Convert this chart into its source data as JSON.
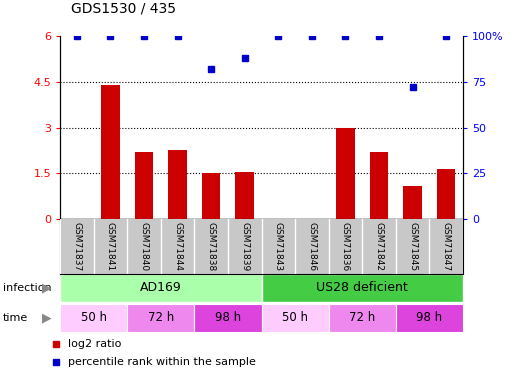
{
  "title": "GDS1530 / 435",
  "samples": [
    "GSM71837",
    "GSM71841",
    "GSM71840",
    "GSM71844",
    "GSM71838",
    "GSM71839",
    "GSM71843",
    "GSM71846",
    "GSM71836",
    "GSM71842",
    "GSM71845",
    "GSM71847"
  ],
  "log2_ratio": [
    0.0,
    4.4,
    2.2,
    2.25,
    1.5,
    1.55,
    0.0,
    0.0,
    3.0,
    2.2,
    1.1,
    1.65
  ],
  "percentile_x_idx": [
    0,
    1,
    2,
    3,
    4,
    5,
    6,
    7,
    8,
    9,
    10,
    11
  ],
  "percentile_values": [
    100,
    100,
    100,
    100,
    82,
    88,
    100,
    100,
    100,
    100,
    72,
    100
  ],
  "ylim_left": [
    0,
    6
  ],
  "ylim_right": [
    0,
    100
  ],
  "yticks_left": [
    0,
    1.5,
    3.0,
    4.5,
    6.0
  ],
  "ytick_labels_left": [
    "0",
    "1.5",
    "3",
    "4.5",
    "6"
  ],
  "yticks_right": [
    0,
    25,
    50,
    75,
    100
  ],
  "ytick_labels_right": [
    "0",
    "25",
    "50",
    "75",
    "100%"
  ],
  "bar_color": "#cc0000",
  "dot_color": "#0000cc",
  "infection_labels": [
    "AD169",
    "US28 deficient"
  ],
  "infection_color_light": "#aaffaa",
  "infection_color_dark": "#44cc44",
  "time_groups": [
    {
      "label": "50 h",
      "span": [
        0,
        2
      ],
      "color": "#ffccff"
    },
    {
      "label": "72 h",
      "span": [
        2,
        4
      ],
      "color": "#ee88ee"
    },
    {
      "label": "98 h",
      "span": [
        4,
        6
      ],
      "color": "#dd44dd"
    },
    {
      "label": "50 h",
      "span": [
        6,
        8
      ],
      "color": "#ffccff"
    },
    {
      "label": "72 h",
      "span": [
        8,
        10
      ],
      "color": "#ee88ee"
    },
    {
      "label": "98 h",
      "span": [
        10,
        12
      ],
      "color": "#dd44dd"
    }
  ],
  "legend_bar_color": "#cc0000",
  "legend_dot_color": "#0000cc",
  "legend_label1": "log2 ratio",
  "legend_label2": "percentile rank within the sample"
}
